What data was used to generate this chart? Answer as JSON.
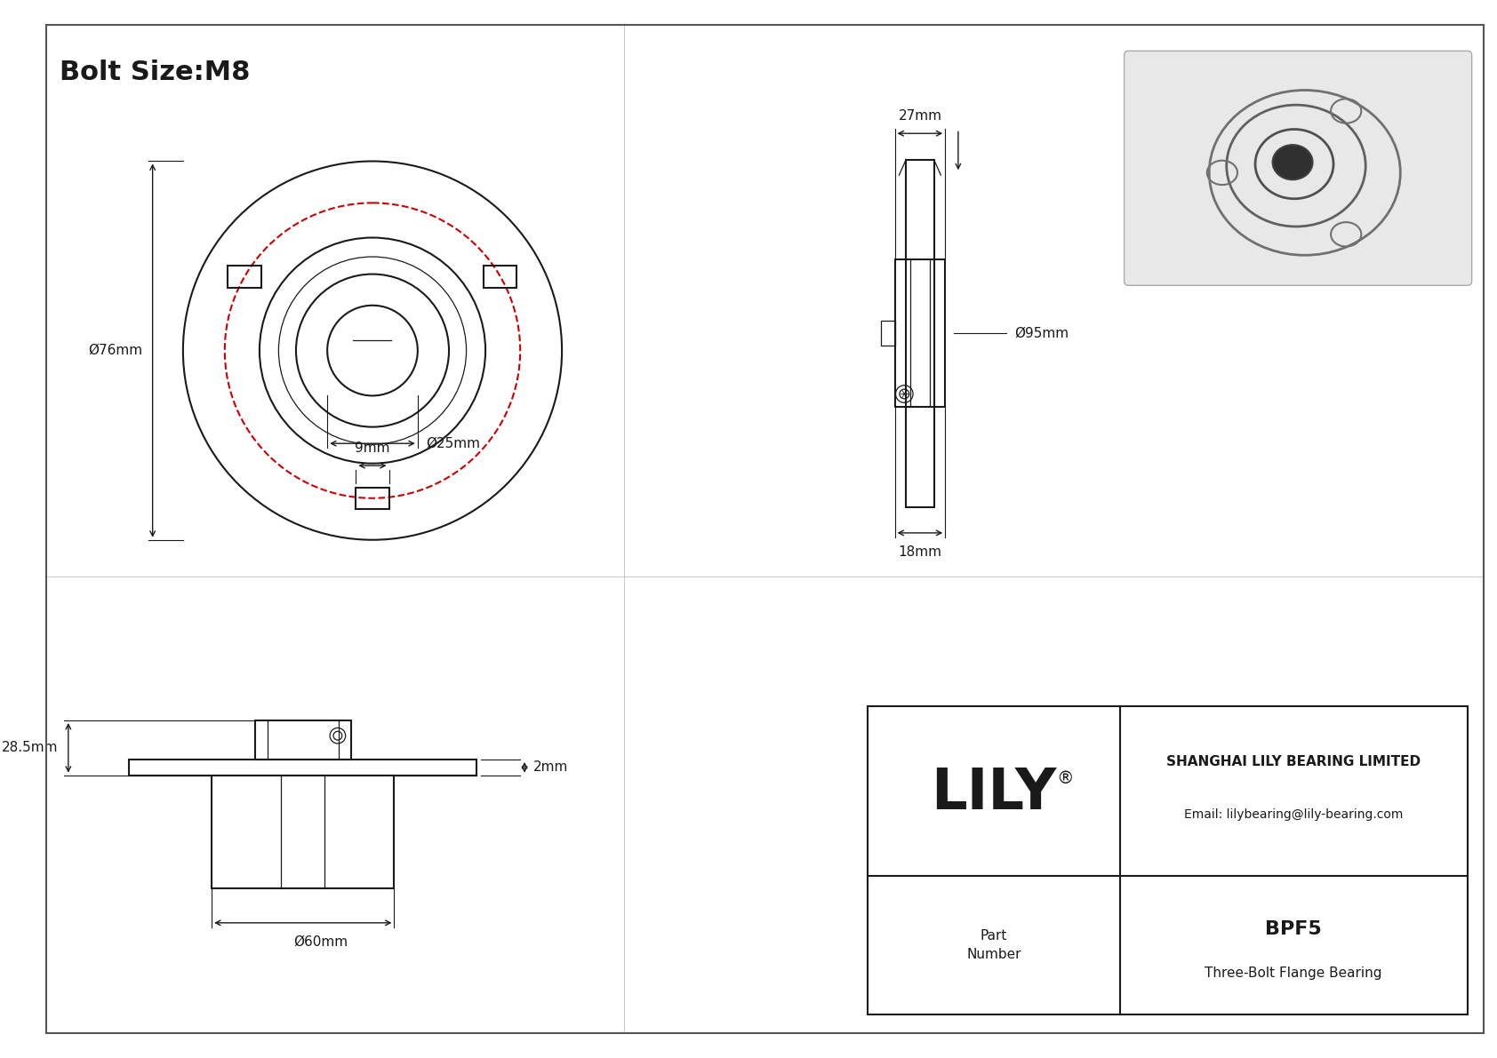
{
  "bg_color": "#ffffff",
  "line_color": "#1a1a1a",
  "red_color": "#cc0000",
  "dim_color": "#1a1a1a",
  "annotations": {
    "bolt_size": "Bolt Size:M8",
    "dim_9mm": "9mm",
    "dim_76mm": "Ø76mm",
    "dim_25mm": "Ø25mm",
    "dim_27mm": "27mm",
    "dim_95mm": "Ø95mm",
    "dim_18mm": "18mm",
    "dim_2mm": "2mm",
    "dim_285mm": "28.5mm",
    "dim_60mm": "Ø60mm"
  },
  "title_block": {
    "company": "SHANGHAI LILY BEARING LIMITED",
    "email": "Email: lilybearing@lily-bearing.com",
    "part_number": "BPF5",
    "description": "Three-Bolt Flange Bearing",
    "logo": "LILY"
  }
}
